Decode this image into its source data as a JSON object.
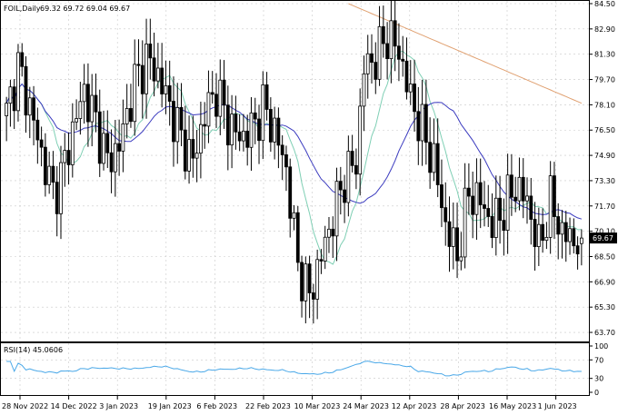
{
  "chart_data": {
    "type": "candlestick",
    "symbol_label": "FOIL,Daily",
    "ohlc_label": "69.32 69.72 69.04 69.67",
    "last_price": "69.67",
    "price_axis": {
      "ticks": [
        "84.50",
        "82.90",
        "81.30",
        "79.70",
        "78.10",
        "76.50",
        "74.90",
        "73.30",
        "71.70",
        "70.10",
        "68.50",
        "66.90",
        "65.30",
        "63.70"
      ],
      "range": [
        63.3,
        84.5
      ]
    },
    "date_axis": {
      "ticks": [
        "28 Nov 2022",
        "14 Dec 2022",
        "3 Jan 2023",
        "19 Jan 2023",
        "6 Feb 2023",
        "22 Feb 2023",
        "10 Mar 2023",
        "24 Mar 2023",
        "12 Apr 2023",
        "28 Apr 2023",
        "16 May 2023",
        "1 Jun 2023"
      ]
    },
    "rsi": {
      "label": "RSI(14) 45.0606",
      "ticks": [
        "100",
        "70",
        "30",
        "0"
      ],
      "levels": [
        30,
        70
      ],
      "range": [
        0,
        100
      ]
    },
    "colors": {
      "bull_body": "#ffffff",
      "bear_body": "#000000",
      "ma_short": "#7fcfb4",
      "ma_mid": "#3b3bbf",
      "ma_long": "#e0a070",
      "rsi_line": "#4aa8e8",
      "grid": "#c8c8c8",
      "last_price_bg": "#000000"
    }
  }
}
